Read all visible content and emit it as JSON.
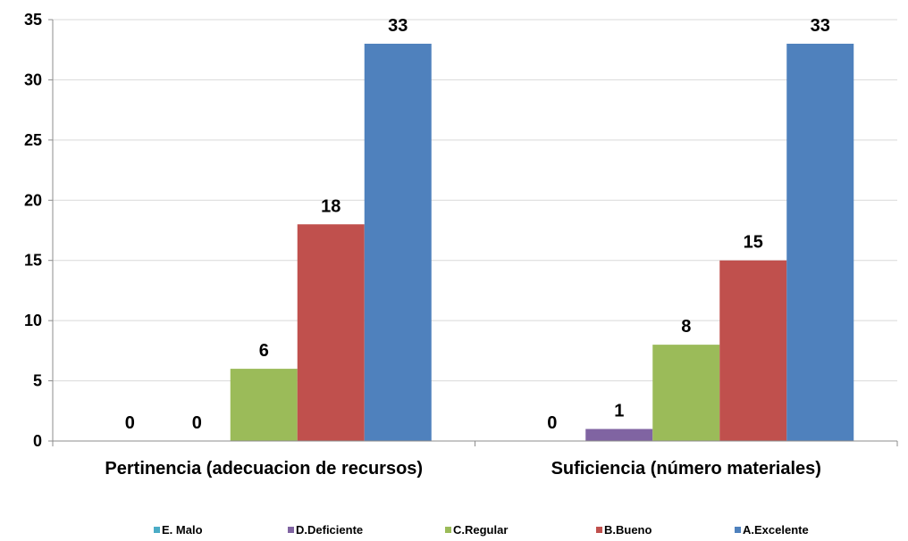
{
  "chart_data": {
    "type": "bar",
    "categories": [
      "Pertinencia (adecuacion de recursos)",
      "Suficiencia (número materiales)"
    ],
    "series": [
      {
        "name": "E. Malo",
        "values": [
          0,
          0
        ],
        "color": "#4bacc6"
      },
      {
        "name": "D.Deficiente",
        "values": [
          0,
          1
        ],
        "color": "#8064a2"
      },
      {
        "name": "C.Regular",
        "values": [
          6,
          8
        ],
        "color": "#9bbb59"
      },
      {
        "name": "B.Bueno",
        "values": [
          18,
          15
        ],
        "color": "#c0504d"
      },
      {
        "name": "A.Excelente",
        "values": [
          33,
          33
        ],
        "color": "#4f81bd"
      }
    ],
    "data_labels": [
      [
        "0",
        "0"
      ],
      [
        "0",
        "1"
      ],
      [
        "6",
        "8"
      ],
      [
        "18",
        "15"
      ],
      [
        "33",
        "33"
      ]
    ],
    "y_ticks": [
      0,
      5,
      10,
      15,
      20,
      25,
      30,
      35
    ],
    "ylim": [
      0,
      35
    ],
    "grid": true,
    "legend_position": "bottom",
    "title": "",
    "xlabel": "",
    "ylabel": ""
  }
}
